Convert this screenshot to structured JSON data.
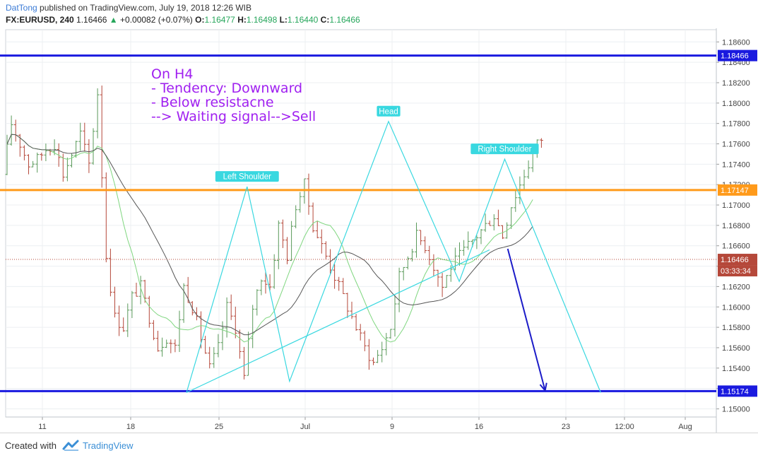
{
  "header": {
    "author": "DatTong",
    "published_text": "published on TradingView.com, July 19, 2018 12:26 WIB",
    "symbol": "FX:EURUSD, 240",
    "last": "1.16466",
    "change": "+0.00082 (+0.07%)",
    "o_label": "O:",
    "o_value": "1.16477",
    "h_label": "H:",
    "h_value": "1.16498",
    "l_label": "L:",
    "l_value": "1.16440",
    "c_label": "C:",
    "c_value": "1.16466"
  },
  "footer": {
    "created_label": "Created with",
    "brand": "TradingView"
  },
  "colors": {
    "up_candle": "#5a9a5a",
    "down_candle": "#b5483a",
    "resistance_line": "#1a1adf",
    "support_line": "#1a1adf",
    "mid_line": "#ff9a1a",
    "pattern_line": "#39d8e0",
    "annotation_text": "#a020f0",
    "arrow": "#1c1cc8",
    "sma_slow": "#555555",
    "sma_fast": "#7fd67f"
  },
  "chart_data": {
    "type": "candlestick",
    "ylim": [
      1.1492,
      1.1872
    ],
    "y_ticks": [
      "1.18600",
      "1.18400",
      "1.18200",
      "1.18000",
      "1.17800",
      "1.17600",
      "1.17400",
      "1.17200",
      "1.17000",
      "1.16800",
      "1.16600",
      "1.16400",
      "1.16200",
      "1.16000",
      "1.15800",
      "1.15600",
      "1.15400",
      "1.15200",
      "1.15000"
    ],
    "x_ticks": [
      "11",
      "18",
      "25",
      "Jul",
      "9",
      "16",
      "23",
      "12:00",
      "Aug"
    ],
    "annotation_lines": [
      "On H4",
      "- Tendency: Downward",
      "- Below resistacne",
      "--> Waiting signal-->Sell"
    ],
    "pattern_labels": [
      "Left Shoulder",
      "Head",
      "Right Shoulder"
    ],
    "price_tags": [
      {
        "value": "1.18466",
        "style": "resistance"
      },
      {
        "value": "1.17147",
        "style": "mid"
      },
      {
        "value": "1.16466",
        "style": "last"
      },
      {
        "value": "03:33:34",
        "style": "timer"
      },
      {
        "value": "1.15174",
        "style": "support"
      }
    ],
    "horizontal_levels": [
      1.18466,
      1.17147,
      1.15174
    ],
    "last_price": 1.16466,
    "pattern_points": [
      [
        0.0,
        1.1516
      ],
      [
        6.0,
        1.1718
      ],
      [
        10.2,
        1.1527
      ],
      [
        20.0,
        1.1782
      ],
      [
        27.0,
        1.1625
      ],
      [
        31.5,
        1.1745
      ],
      [
        41.0,
        1.1516
      ]
    ],
    "neckline": [
      [
        0.0,
        1.1516
      ],
      [
        30.0,
        1.1656
      ]
    ],
    "arrow": {
      "from": [
        31.8,
        1.1657
      ],
      "to": [
        35.5,
        1.1518
      ]
    },
    "close_path": [
      1.173,
      1.178,
      1.176,
      1.174,
      1.1745,
      1.1755,
      1.176,
      1.173,
      1.175,
      1.177,
      1.174,
      1.181,
      1.165,
      1.159,
      1.158,
      1.161,
      1.162,
      1.159,
      1.156,
      1.157,
      1.156,
      1.162,
      1.16,
      1.157,
      1.154,
      1.156,
      1.16,
      1.158,
      1.153,
      1.16,
      1.163,
      1.162,
      1.168,
      1.165,
      1.17,
      1.172,
      1.168,
      1.166,
      1.164,
      1.162,
      1.16,
      1.158,
      1.156,
      1.1545,
      1.156,
      1.158,
      1.163,
      1.165,
      1.167,
      1.166,
      1.164,
      1.162,
      1.164,
      1.165,
      1.166,
      1.167,
      1.168,
      1.169,
      1.167,
      1.17,
      1.172,
      1.174,
      1.176,
      1.177,
      1.178,
      1.176,
      1.174,
      1.172,
      1.17,
      1.171,
      1.169,
      1.168,
      1.166,
      1.164,
      1.163,
      1.165,
      1.167,
      1.169,
      1.171,
      1.173,
      1.17,
      1.167,
      1.165,
      1.163,
      1.162,
      1.164,
      1.1647
    ]
  }
}
